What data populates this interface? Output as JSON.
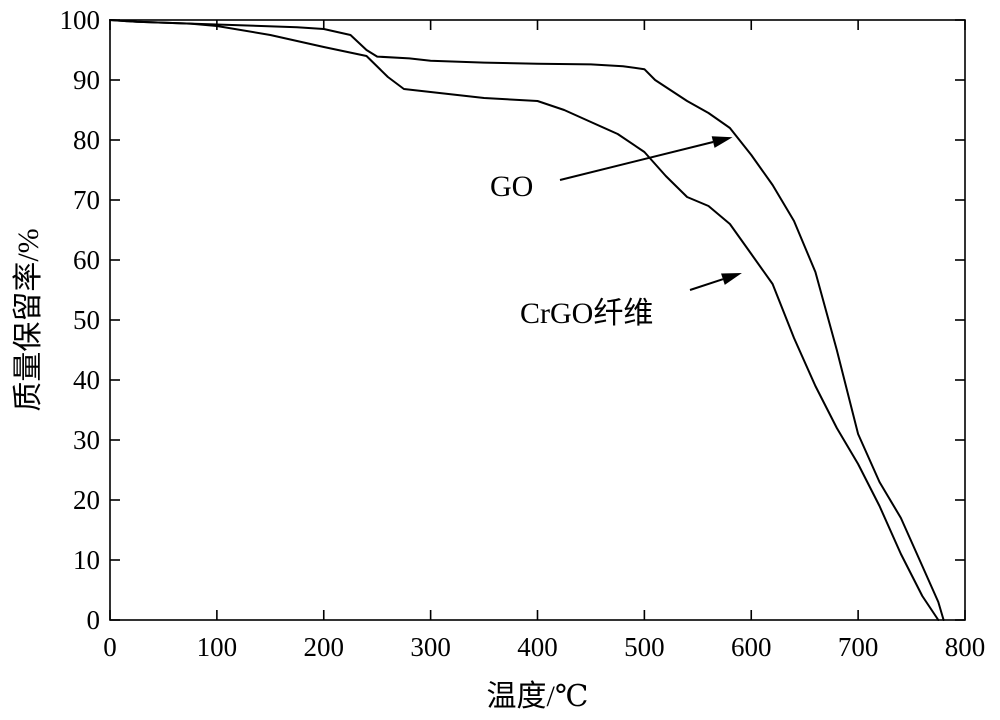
{
  "chart_data": {
    "type": "line",
    "xlabel": "温度/℃",
    "ylabel": "质量保留率/%",
    "xlim": [
      0,
      800
    ],
    "ylim": [
      0,
      100
    ],
    "xticks": [
      "0",
      "100",
      "200",
      "300",
      "400",
      "500",
      "600",
      "700",
      "800"
    ],
    "yticks": [
      "0",
      "10",
      "20",
      "30",
      "40",
      "50",
      "60",
      "70",
      "80",
      "90",
      "100"
    ],
    "grid": false,
    "series": [
      {
        "name": "GO",
        "x": [
          0,
          25,
          75,
          125,
          175,
          200,
          225,
          240,
          250,
          280,
          300,
          350,
          400,
          450,
          480,
          500,
          510,
          540,
          560,
          580,
          600,
          620,
          640,
          660,
          680,
          700,
          720,
          740,
          760,
          775,
          780
        ],
        "y": [
          100,
          99.7,
          99.4,
          99.1,
          98.8,
          98.5,
          97.5,
          95,
          93.9,
          93.6,
          93.2,
          92.9,
          92.7,
          92.6,
          92.3,
          91.8,
          90,
          86.5,
          84.5,
          82,
          77.5,
          72.5,
          66.5,
          58,
          45,
          31,
          23,
          17,
          9,
          3,
          0
        ]
      },
      {
        "name": "CrGO纤维",
        "x": [
          0,
          25,
          75,
          100,
          150,
          200,
          240,
          260,
          275,
          300,
          350,
          400,
          425,
          450,
          475,
          500,
          520,
          540,
          560,
          580,
          600,
          620,
          640,
          660,
          680,
          700,
          720,
          740,
          760,
          775
        ],
        "y": [
          100,
          99.7,
          99.4,
          99,
          97.5,
          95.5,
          94,
          90.5,
          88.5,
          88,
          87,
          86.5,
          85,
          83,
          81,
          78,
          74,
          70.5,
          69,
          66,
          61,
          56,
          47,
          39,
          32,
          26,
          19,
          11,
          4,
          0
        ]
      }
    ],
    "annotations": [
      {
        "text": "GO",
        "target_series": "GO",
        "point": [
          575,
          80.8
        ]
      },
      {
        "text": "CrGO纤维",
        "target_series": "CrGO纤维",
        "point": [
          595,
          57.5
        ]
      }
    ]
  }
}
